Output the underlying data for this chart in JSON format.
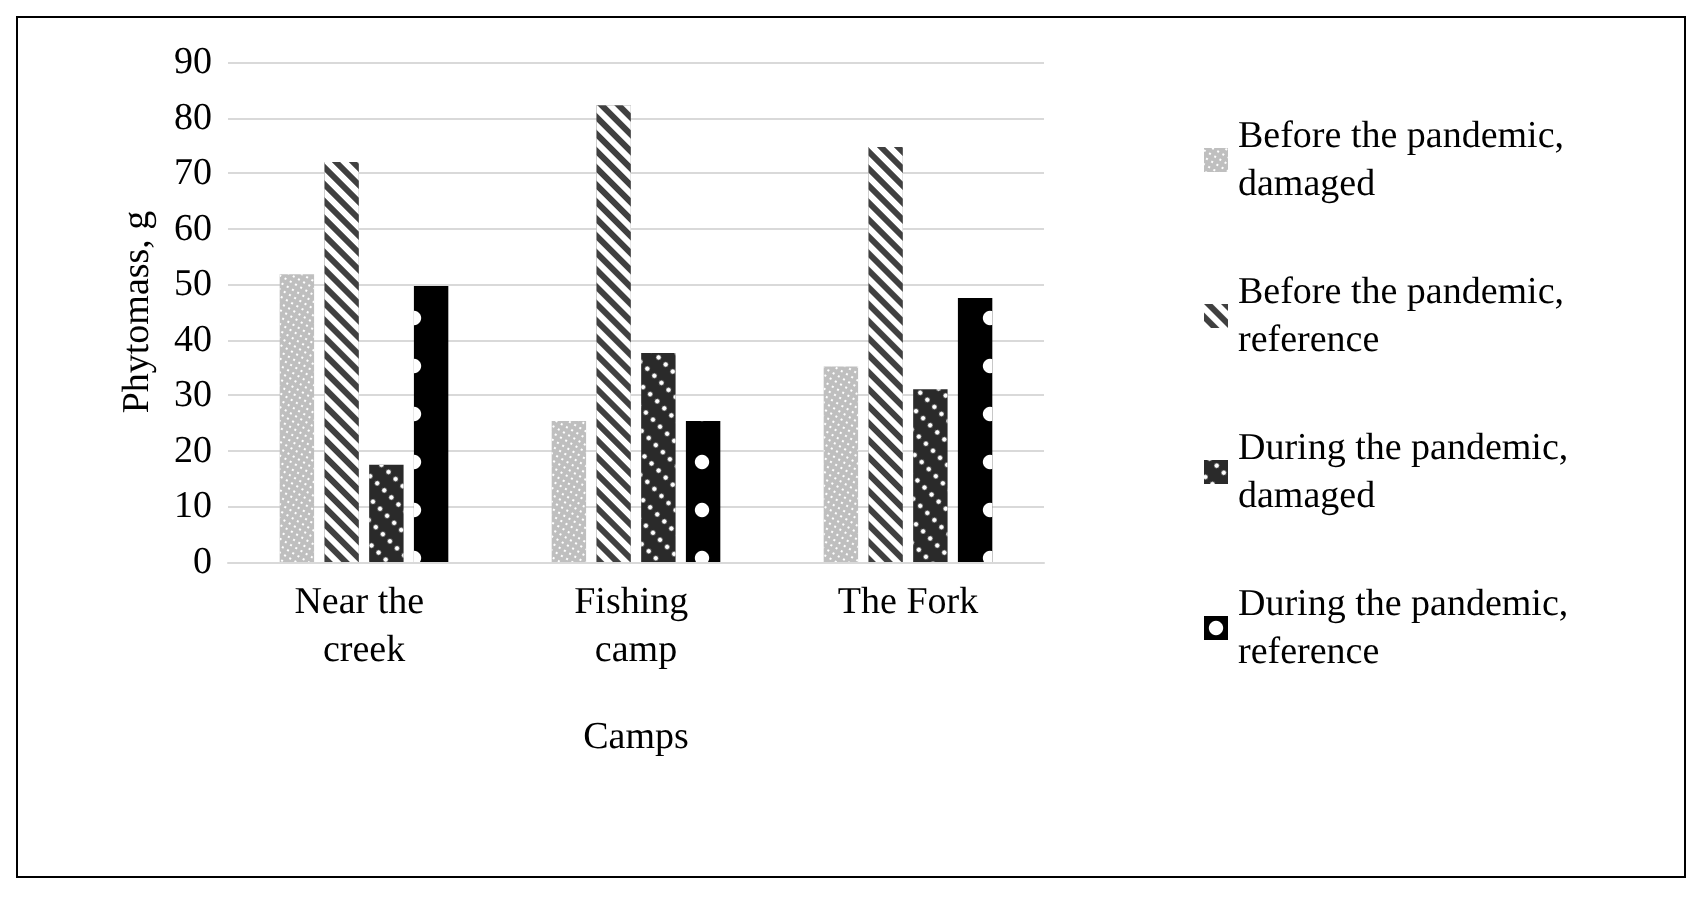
{
  "chart_data": {
    "type": "bar",
    "xlabel": "Camps",
    "ylabel": "Phytomass, g",
    "categories": [
      "Near the creek",
      "Fishing camp",
      "The Fork"
    ],
    "series": [
      {
        "name": "Before the pandemic, damaged",
        "color": "#bfbfbf",
        "values": [
          51.8,
          25.4,
          35.2
        ]
      },
      {
        "name": "Before the pandemic, reference",
        "color": "#404040",
        "values": [
          72,
          82.2,
          74.7
        ]
      },
      {
        "name": "During the pandemic, damaged",
        "color": "#2a2a2a",
        "values": [
          17.5,
          37.6,
          31.1
        ]
      },
      {
        "name": "During the pandemic, reference",
        "color": "#000000",
        "values": [
          49.7,
          25.4,
          47.5
        ]
      }
    ],
    "ylim": [
      0,
      90
    ],
    "yticks": [
      0,
      10,
      20,
      30,
      40,
      50,
      60,
      70,
      80,
      90
    ],
    "grid": "y",
    "legend": "right"
  }
}
